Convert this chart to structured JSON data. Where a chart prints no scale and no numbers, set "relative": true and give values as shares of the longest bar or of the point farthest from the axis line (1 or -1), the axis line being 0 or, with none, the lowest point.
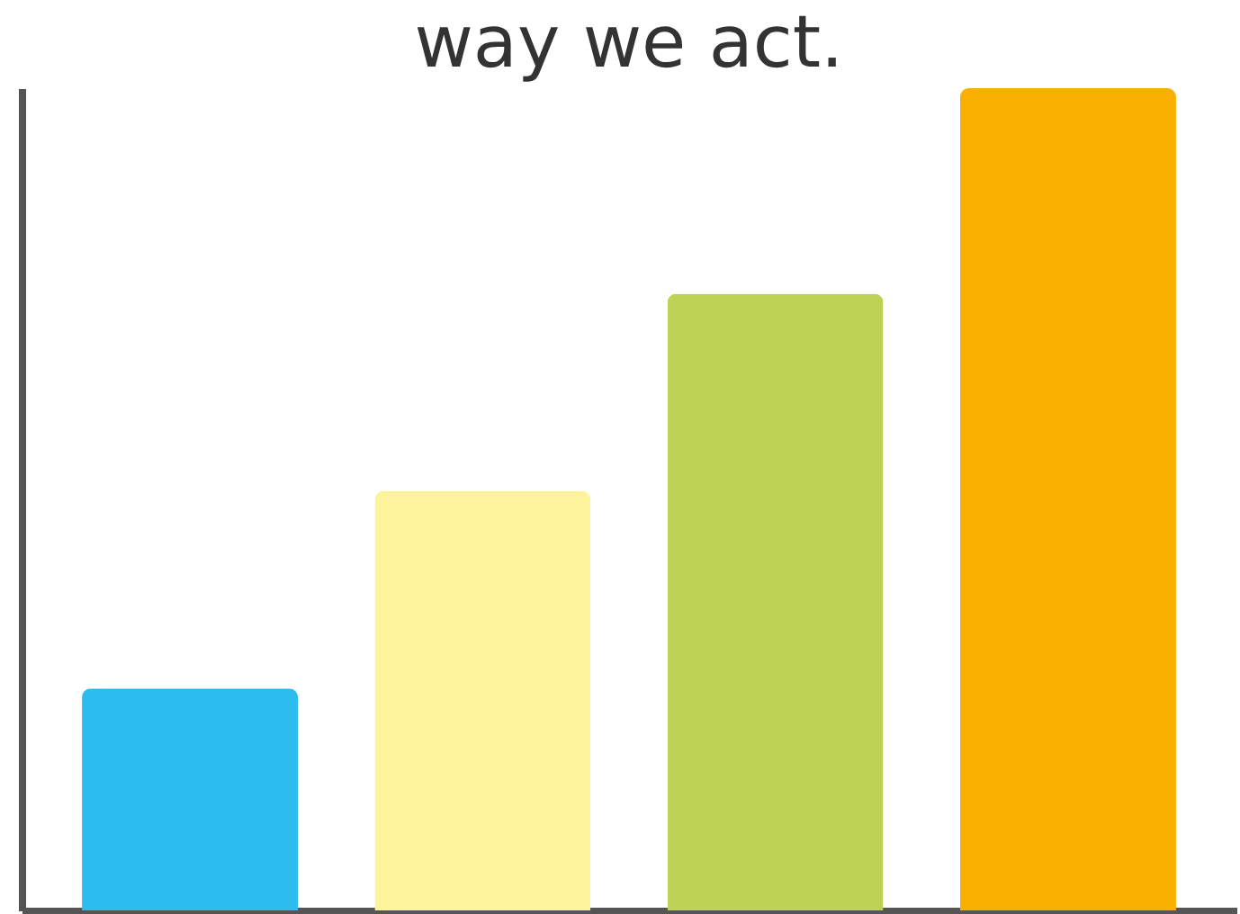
{
  "chart_data": {
    "type": "bar",
    "title": "way we act.",
    "relative": true,
    "categories": [
      null,
      null,
      null,
      null
    ],
    "values": [
      0.27,
      0.51,
      0.75,
      1.0
    ],
    "colors": [
      "#2cbdee",
      "#fef49c",
      "#bed255",
      "#f9b000"
    ],
    "grid": false
  }
}
